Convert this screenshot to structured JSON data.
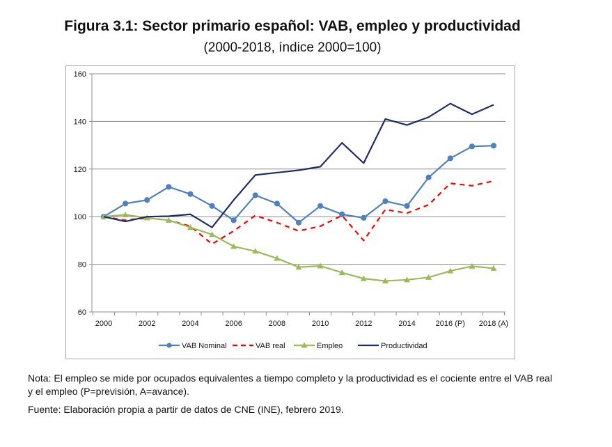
{
  "figure": {
    "title": "Figura 3.1: Sector primario español: VAB, empleo y productividad",
    "subtitle": "(2000-2018, índice 2000=100)"
  },
  "chart_data": {
    "type": "line",
    "title": "Figura 3.1: Sector primario español: VAB, empleo y productividad",
    "subtitle": "(2000-2018, índice 2000=100)",
    "xlabel": "",
    "ylabel": "",
    "x": [
      2000,
      2001,
      2002,
      2003,
      2004,
      2005,
      2006,
      2007,
      2008,
      2009,
      2010,
      2011,
      2012,
      2013,
      2014,
      2015,
      2016,
      2017,
      2018
    ],
    "x_tick_labels": [
      "2000",
      "2002",
      "2004",
      "2006",
      "2008",
      "2010",
      "2012",
      "2014",
      "2016 (P)",
      "2018 (A)"
    ],
    "x_tick_years": [
      2000,
      2002,
      2004,
      2006,
      2008,
      2010,
      2012,
      2014,
      2016,
      2018
    ],
    "y_ticks": [
      60,
      80,
      100,
      120,
      140,
      160
    ],
    "ylim": [
      60,
      160
    ],
    "grid": true,
    "legend_position": "bottom",
    "series": [
      {
        "name": "VAB Nominal",
        "color": "#4f81bd",
        "style": "solid",
        "marker": "circle",
        "values": [
          100,
          105.5,
          107,
          112.5,
          109.5,
          104.5,
          98.5,
          109,
          105.5,
          97.5,
          104.5,
          101,
          99.5,
          106.5,
          104.5,
          116.5,
          124.5,
          129.5,
          129.8
        ]
      },
      {
        "name": "VAB real",
        "color": "#ff0000",
        "style": "dashed",
        "marker": "none",
        "values": [
          100,
          98.5,
          99.5,
          98.5,
          96,
          88.5,
          94,
          100.5,
          97.5,
          94,
          96,
          100.5,
          90,
          103,
          101.5,
          105,
          114,
          113,
          115
        ]
      },
      {
        "name": "Empleo",
        "color": "#9bbb59",
        "style": "solid",
        "marker": "triangle",
        "values": [
          100,
          100.8,
          99.5,
          98.5,
          95.5,
          92.5,
          87.5,
          85.5,
          82.5,
          78.8,
          79.3,
          76.5,
          74,
          73,
          73.5,
          74.5,
          77.2,
          79.2,
          78.3
        ]
      },
      {
        "name": "Productividad",
        "color": "#1f2d66",
        "style": "solid",
        "marker": "none",
        "values": [
          100,
          98,
          100,
          100.2,
          101,
          95.5,
          107,
          117.5,
          118.5,
          119.5,
          121,
          131,
          122.5,
          141,
          138.5,
          141.8,
          147.5,
          143,
          147
        ]
      }
    ]
  },
  "notes": {
    "nota": "Nota: El empleo se mide por ocupados equivalentes a tiempo completo y la productividad es el cociente entre el VAB real y el empleo (P=previsión, A=avance).",
    "fuente": "Fuente: Elaboración propia a partir de datos de CNE (INE), febrero 2019."
  }
}
